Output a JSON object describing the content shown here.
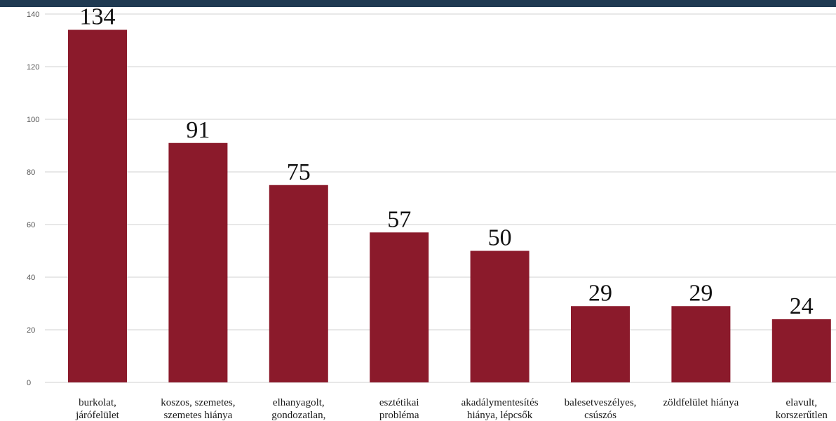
{
  "chart_data": {
    "type": "bar",
    "categories": [
      [
        "burkolat,",
        "járófelület"
      ],
      [
        "koszos, szemetes,",
        "szemetes hiánya"
      ],
      [
        "elhanyagolt,",
        "gondozatlan,"
      ],
      [
        "esztétikai",
        "probléma"
      ],
      [
        "akadálymentesítés",
        "hiánya, lépcsők"
      ],
      [
        "balesetveszélyes,",
        "csúszós"
      ],
      [
        "zöldfelület hiánya"
      ],
      [
        "elavult,",
        "korszerűtlen"
      ]
    ],
    "values": [
      134,
      91,
      75,
      57,
      50,
      29,
      29,
      24
    ],
    "data_labels": [
      "134",
      "91",
      "75",
      "57",
      "50",
      "29",
      "29",
      "24"
    ],
    "yticks": [
      0,
      20,
      40,
      60,
      80,
      100,
      120,
      140
    ],
    "ylim": [
      0,
      140
    ],
    "grid": true,
    "legend": "none"
  },
  "colors": {
    "bar": "#8b1a2b",
    "header_bar": "#1f3a52"
  }
}
